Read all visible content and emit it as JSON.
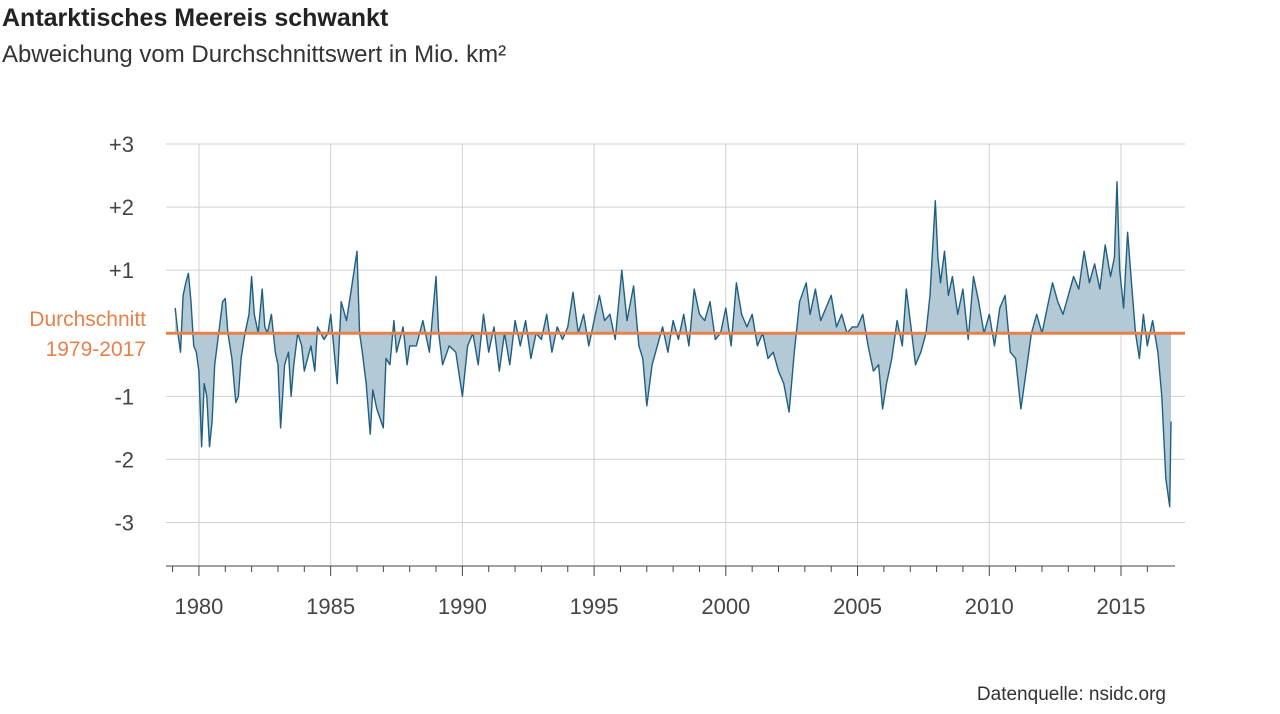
{
  "chart_data": {
    "type": "area",
    "title": "Antarktisches Meereis schwankt",
    "subtitle": "Abweichung vom Durchschnittswert in Mio. km²",
    "source": "Datenquelle: nsidc.org",
    "xlim": [
      1978.75,
      2017.05
    ],
    "ylim": [
      -3.69,
      3
    ],
    "xticks": [
      1980,
      1985,
      1990,
      1995,
      2000,
      2005,
      2010,
      2015
    ],
    "xminorticks": [
      1979,
      1981,
      1982,
      1983,
      1984,
      1986,
      1987,
      1988,
      1989,
      1991,
      1992,
      1993,
      1994,
      1996,
      1997,
      1998,
      1999,
      2001,
      2002,
      2003,
      2004,
      2006,
      2007,
      2008,
      2009,
      2011,
      2012,
      2013,
      2014,
      2016
    ],
    "yticks": [
      {
        "value": 3,
        "label": "+3"
      },
      {
        "value": 2,
        "label": "+2"
      },
      {
        "value": 1,
        "label": "+1"
      },
      -1,
      -2,
      -3
    ],
    "grid": true,
    "reference_line": {
      "value": 0,
      "label": [
        "Durchschnitt",
        "1979-2017"
      ],
      "color": "#e8804a"
    },
    "series": [
      {
        "color": "#1f5f82",
        "fill": "#b3c9d5",
        "x": [
          1979.1,
          1979.2,
          1979.3,
          1979.4,
          1979.5,
          1979.6,
          1979.7,
          1979.8,
          1979.9,
          1980.0,
          1980.1,
          1980.2,
          1980.3,
          1980.4,
          1980.5,
          1980.6,
          1980.75,
          1980.9,
          1981.0,
          1981.1,
          1981.25,
          1981.4,
          1981.5,
          1981.6,
          1981.75,
          1981.9,
          1982.0,
          1982.1,
          1982.25,
          1982.4,
          1982.5,
          1982.6,
          1982.75,
          1982.9,
          1983.0,
          1983.1,
          1983.25,
          1983.4,
          1983.5,
          1983.6,
          1983.75,
          1983.9,
          1984.0,
          1984.25,
          1984.4,
          1984.5,
          1984.75,
          1984.9,
          1985.0,
          1985.25,
          1985.4,
          1985.6,
          1985.75,
          1986.0,
          1986.1,
          1986.2,
          1986.35,
          1986.5,
          1986.6,
          1986.75,
          1987.0,
          1987.1,
          1987.25,
          1987.4,
          1987.5,
          1987.75,
          1987.9,
          1988.0,
          1988.25,
          1988.5,
          1988.75,
          1989.0,
          1989.1,
          1989.25,
          1989.5,
          1989.75,
          1990.0,
          1990.2,
          1990.4,
          1990.6,
          1990.8,
          1991.0,
          1991.2,
          1991.4,
          1991.6,
          1991.8,
          1992.0,
          1992.2,
          1992.4,
          1992.6,
          1992.8,
          1993.0,
          1993.2,
          1993.4,
          1993.6,
          1993.8,
          1994.0,
          1994.2,
          1994.4,
          1994.6,
          1994.8,
          1995.0,
          1995.2,
          1995.4,
          1995.6,
          1995.8,
          1996.05,
          1996.25,
          1996.5,
          1996.7,
          1996.85,
          1997.0,
          1997.2,
          1997.4,
          1997.6,
          1997.8,
          1998.0,
          1998.2,
          1998.4,
          1998.6,
          1998.8,
          1999.0,
          1999.2,
          1999.4,
          1999.6,
          1999.8,
          2000.0,
          2000.2,
          2000.4,
          2000.6,
          2000.8,
          2001.0,
          2001.2,
          2001.4,
          2001.6,
          2001.8,
          2002.0,
          2002.2,
          2002.4,
          2002.6,
          2002.8,
          2003.05,
          2003.2,
          2003.4,
          2003.6,
          2003.8,
          2004.0,
          2004.2,
          2004.4,
          2004.6,
          2004.8,
          2005.0,
          2005.2,
          2005.4,
          2005.6,
          2005.8,
          2005.95,
          2006.1,
          2006.3,
          2006.5,
          2006.7,
          2006.85,
          2007.0,
          2007.2,
          2007.4,
          2007.6,
          2007.75,
          2007.95,
          2008.05,
          2008.15,
          2008.3,
          2008.45,
          2008.6,
          2008.8,
          2009.0,
          2009.2,
          2009.4,
          2009.6,
          2009.8,
          2010.0,
          2010.2,
          2010.4,
          2010.6,
          2010.8,
          2011.0,
          2011.2,
          2011.4,
          2011.6,
          2011.8,
          2012.0,
          2012.2,
          2012.4,
          2012.6,
          2012.8,
          2013.0,
          2013.2,
          2013.4,
          2013.6,
          2013.8,
          2014.0,
          2014.2,
          2014.4,
          2014.6,
          2014.75,
          2014.85,
          2014.95,
          2015.1,
          2015.25,
          2015.4,
          2015.55,
          2015.7,
          2015.85,
          2016.0,
          2016.2,
          2016.4,
          2016.55,
          2016.7,
          2016.85,
          2016.9
        ],
        "values": [
          0.4,
          0.0,
          -0.3,
          0.6,
          0.8,
          0.95,
          0.5,
          -0.2,
          -0.3,
          -0.6,
          -1.8,
          -0.8,
          -1.0,
          -1.8,
          -1.4,
          -0.5,
          0.0,
          0.5,
          0.55,
          0.0,
          -0.4,
          -1.1,
          -1.0,
          -0.4,
          0.0,
          0.3,
          0.9,
          0.3,
          0.0,
          0.7,
          0.1,
          0.0,
          0.3,
          -0.3,
          -0.5,
          -1.5,
          -0.5,
          -0.3,
          -1.0,
          -0.5,
          0.0,
          -0.2,
          -0.6,
          -0.2,
          -0.6,
          0.1,
          -0.1,
          0.0,
          0.3,
          -0.8,
          0.5,
          0.2,
          0.6,
          1.3,
          0.0,
          -0.3,
          -0.8,
          -1.6,
          -0.9,
          -1.2,
          -1.5,
          -0.4,
          -0.5,
          0.2,
          -0.3,
          0.1,
          -0.5,
          -0.2,
          -0.2,
          0.2,
          -0.3,
          0.9,
          0.0,
          -0.5,
          -0.2,
          -0.3,
          -1.0,
          -0.2,
          0.0,
          -0.5,
          0.3,
          -0.3,
          0.1,
          -0.6,
          0.0,
          -0.5,
          0.2,
          -0.2,
          0.2,
          -0.4,
          0.0,
          -0.1,
          0.3,
          -0.3,
          0.1,
          -0.1,
          0.1,
          0.65,
          0.0,
          0.3,
          -0.2,
          0.2,
          0.6,
          0.2,
          0.3,
          -0.1,
          1.0,
          0.2,
          0.75,
          -0.2,
          -0.4,
          -1.15,
          -0.5,
          -0.2,
          0.1,
          -0.3,
          0.2,
          -0.1,
          0.3,
          -0.2,
          0.7,
          0.3,
          0.2,
          0.5,
          -0.1,
          0.0,
          0.4,
          -0.2,
          0.8,
          0.3,
          0.1,
          0.3,
          -0.2,
          0.0,
          -0.4,
          -0.3,
          -0.6,
          -0.8,
          -1.25,
          -0.3,
          0.5,
          0.8,
          0.3,
          0.7,
          0.2,
          0.4,
          0.6,
          0.1,
          0.3,
          0.0,
          0.1,
          0.1,
          0.3,
          -0.2,
          -0.6,
          -0.5,
          -1.2,
          -0.8,
          -0.4,
          0.2,
          -0.2,
          0.7,
          0.2,
          -0.5,
          -0.3,
          0.0,
          0.6,
          2.1,
          1.2,
          0.8,
          1.3,
          0.6,
          0.9,
          0.3,
          0.7,
          -0.1,
          0.9,
          0.5,
          0.0,
          0.3,
          -0.2,
          0.4,
          0.6,
          -0.3,
          -0.4,
          -1.2,
          -0.6,
          0.0,
          0.3,
          0.0,
          0.4,
          0.8,
          0.5,
          0.3,
          0.6,
          0.9,
          0.7,
          1.3,
          0.8,
          1.1,
          0.7,
          1.4,
          0.9,
          1.2,
          2.4,
          1.0,
          0.4,
          1.6,
          0.8,
          0.0,
          -0.4,
          0.3,
          -0.2,
          0.2,
          -0.3,
          -1.0,
          -2.3,
          -2.75,
          -1.4
        ]
      }
    ]
  }
}
